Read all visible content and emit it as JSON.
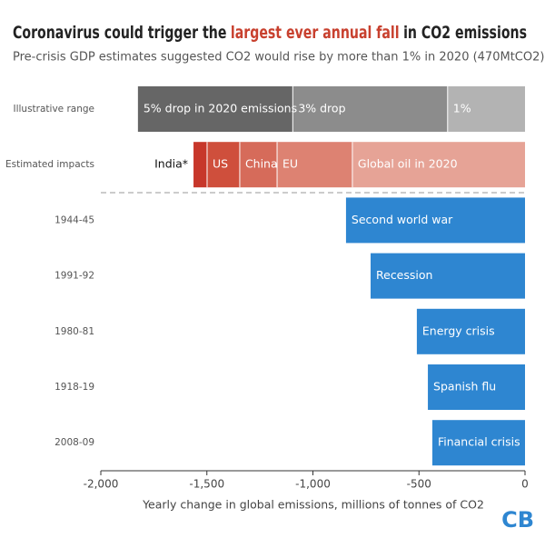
{
  "chart_data": {
    "type": "stacked-hbar",
    "title_parts": [
      "Coronavirus could trigger the",
      "largest ever annual fall",
      "in CO2 emissions"
    ],
    "title_colors": [
      "#222222",
      "#c8402e",
      "#222222"
    ],
    "subtitle": "Pre-crisis GDP estimates suggested CO2 would rise by more than 1% in 2020 (470MtCO2)",
    "xlabel": "Yearly change in global emissions, millions of tonnes of CO2",
    "logo": "CB",
    "xlim": [
      -2000,
      0
    ],
    "xticks": [
      {
        "value": -2000,
        "label": "-2,000"
      },
      {
        "value": -1500,
        "label": "-1,500"
      },
      {
        "value": -1000,
        "label": "-1,000"
      },
      -500,
      0
    ],
    "rows": [
      {
        "category": "Illustrative range",
        "segments": [
          {
            "label": "1%",
            "value": -365,
            "color": "#b3b3b3"
          },
          {
            "label": "3% drop",
            "value": -730,
            "color": "#8c8c8c"
          },
          {
            "label": "5% drop in 2020 emissions",
            "value": -730,
            "color": "#666666"
          }
        ]
      },
      {
        "category": "Estimated impacts",
        "segments": [
          {
            "label": "Global oil in 2020",
            "value": -814,
            "color": "#e6a396"
          },
          {
            "label": "EU",
            "value": -355,
            "color": "#dd8272"
          },
          {
            "label": "China",
            "value": -176,
            "color": "#d66b5a"
          },
          {
            "label": "US",
            "value": -154,
            "color": "#cf4f3c"
          },
          {
            "label": "India*",
            "value": -64,
            "color": "#c7372a",
            "label_position": "outside"
          }
        ]
      },
      {
        "category": "1944-45",
        "segments": [
          {
            "label": "Second world war",
            "value": -844,
            "color": "#2e86d1"
          }
        ]
      },
      {
        "category": "1991-92",
        "segments": [
          {
            "label": "Recession",
            "value": -728,
            "color": "#2e86d1"
          }
        ]
      },
      {
        "category": "1980-81",
        "segments": [
          {
            "label": "Energy crisis",
            "value": -510,
            "color": "#2e86d1"
          }
        ]
      },
      {
        "category": "1918-19",
        "segments": [
          {
            "label": "Spanish flu",
            "value": -458,
            "color": "#2e86d1"
          }
        ]
      },
      {
        "category": "2008-09",
        "segments": [
          {
            "label": "Financial crisis",
            "value": -437,
            "color": "#2e86d1"
          }
        ]
      }
    ]
  }
}
